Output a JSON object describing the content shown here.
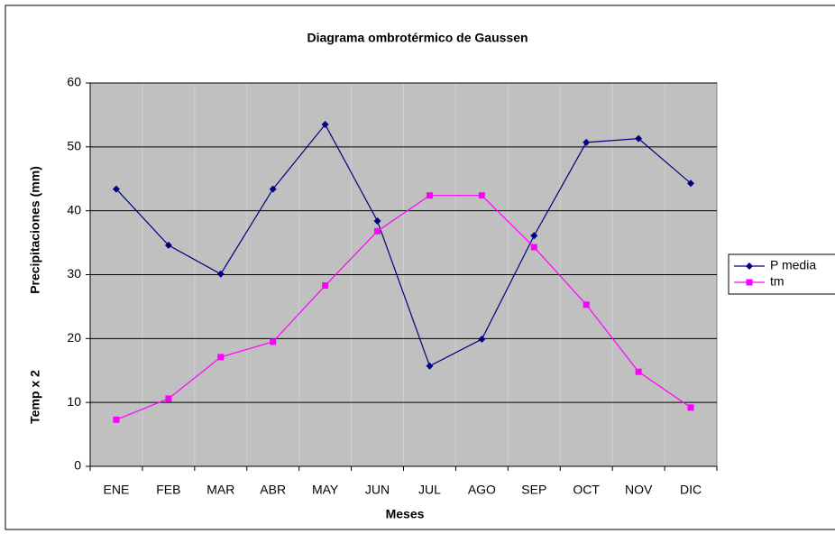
{
  "chart_data": {
    "type": "line",
    "title": "Diagrama ombrotérmico de Gaussen",
    "xlabel": "Meses",
    "ylabel": [
      "Temp x 2",
      "Precipitaciones (mm)"
    ],
    "categories": [
      "ENE",
      "FEB",
      "MAR",
      "ABR",
      "MAY",
      "JUN",
      "JUL",
      "AGO",
      "SEP",
      "OCT",
      "NOV",
      "DIC"
    ],
    "series": [
      {
        "name": "P media",
        "color": "#000080",
        "marker": "diamond",
        "values": [
          43.4,
          34.6,
          30.1,
          43.4,
          53.5,
          38.4,
          15.7,
          19.9,
          36.1,
          50.7,
          51.3,
          44.3
        ]
      },
      {
        "name": "tm",
        "color": "#ff00ff",
        "marker": "square",
        "values": [
          7.3,
          10.6,
          17.1,
          19.5,
          28.3,
          36.8,
          42.4,
          42.4,
          34.3,
          25.3,
          14.8,
          9.2
        ]
      }
    ],
    "ylim": [
      0,
      60
    ],
    "yticks": [
      0,
      10,
      20,
      30,
      40,
      50,
      60
    ],
    "grid": true,
    "legend": "right"
  }
}
